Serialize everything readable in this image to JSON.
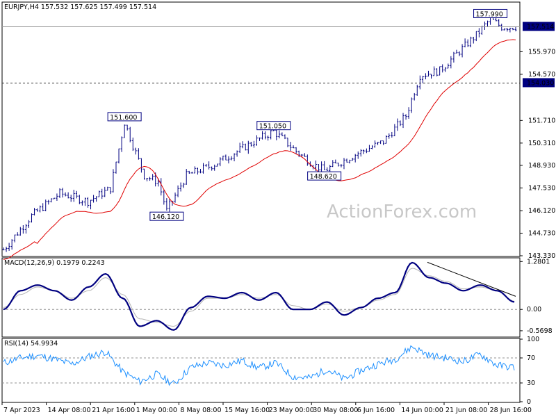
{
  "chart_data": [
    {
      "panel": "price",
      "type": "ohlc",
      "title": "EURJPY,H4  157.532 157.625 157.499 157.514",
      "ylim": [
        143.33,
        159.0
      ],
      "y_ticks": [
        "155.970",
        "154.570",
        "151.710",
        "150.310",
        "148.930",
        "147.530",
        "146.120",
        "144.730",
        "143.330"
      ],
      "current_price_label": "157.514",
      "level_label": "154.030",
      "level_lines": [
        157.514,
        154.03
      ],
      "annotations": [
        {
          "text": "151.600",
          "x": 43,
          "y": 151.6
        },
        {
          "text": "146.120",
          "x": 58,
          "y": 146.12
        },
        {
          "text": "151.050",
          "x": 96,
          "y": 151.05
        },
        {
          "text": "148.620",
          "x": 114,
          "y": 148.62
        },
        {
          "text": "157.990",
          "x": 173,
          "y": 157.99
        }
      ],
      "anchors": [
        {
          "x": 0,
          "y": 143.7
        },
        {
          "x": 10,
          "y": 145.8
        },
        {
          "x": 20,
          "y": 147.2
        },
        {
          "x": 30,
          "y": 146.7
        },
        {
          "x": 38,
          "y": 147.5
        },
        {
          "x": 43,
          "y": 151.6
        },
        {
          "x": 50,
          "y": 148.3
        },
        {
          "x": 55,
          "y": 147.9
        },
        {
          "x": 58,
          "y": 146.12
        },
        {
          "x": 65,
          "y": 148.3
        },
        {
          "x": 75,
          "y": 149.0
        },
        {
          "x": 85,
          "y": 150.0
        },
        {
          "x": 96,
          "y": 151.05
        },
        {
          "x": 104,
          "y": 149.8
        },
        {
          "x": 110,
          "y": 149.0
        },
        {
          "x": 114,
          "y": 148.62
        },
        {
          "x": 125,
          "y": 149.6
        },
        {
          "x": 135,
          "y": 150.4
        },
        {
          "x": 143,
          "y": 152.0
        },
        {
          "x": 148,
          "y": 154.5
        },
        {
          "x": 155,
          "y": 154.8
        },
        {
          "x": 162,
          "y": 156.0
        },
        {
          "x": 168,
          "y": 157.0
        },
        {
          "x": 173,
          "y": 157.99
        },
        {
          "x": 177,
          "y": 157.5
        },
        {
          "x": 182,
          "y": 157.514
        }
      ]
    },
    {
      "panel": "macd",
      "type": "line",
      "title": "MACD(12,26,9) 0.1979 0.2243",
      "ylim": [
        -0.72,
        1.36
      ],
      "y_ticks": [
        "1.2801",
        "0.00",
        "-0.5698"
      ],
      "series": [
        {
          "values": [
            0.0,
            0.5,
            0.65,
            0.5,
            0.25,
            0.6,
            0.95,
            0.3,
            -0.45,
            -0.3,
            -0.55,
            0.05,
            0.35,
            0.3,
            0.45,
            0.25,
            0.45,
            0.0,
            0.0,
            0.2,
            -0.15,
            0.05,
            0.3,
            0.45,
            1.25,
            0.85,
            0.7,
            0.5,
            0.65,
            0.5,
            0.2
          ],
          "color": "#000080"
        },
        {
          "values": [
            0.05,
            0.4,
            0.6,
            0.5,
            0.3,
            0.5,
            0.85,
            0.4,
            -0.25,
            -0.35,
            -0.45,
            -0.05,
            0.3,
            0.3,
            0.4,
            0.3,
            0.4,
            0.1,
            0.0,
            0.15,
            -0.05,
            0.05,
            0.25,
            0.4,
            1.1,
            0.9,
            0.75,
            0.55,
            0.6,
            0.5,
            0.22
          ],
          "color": "#b4b4b4"
        }
      ],
      "trendline": [
        [
          1.26,
          0.51
        ],
        [
          0.35,
          0.93
        ]
      ]
    },
    {
      "panel": "rsi",
      "type": "line",
      "title": "RSI(14) 54.9934",
      "ylim": [
        0,
        100
      ],
      "y_ticks": [
        "100",
        "70",
        "30",
        "0"
      ],
      "levels": [
        70,
        30
      ],
      "series": [
        {
          "values": [
            62,
            70,
            74,
            68,
            60,
            72,
            80,
            48,
            32,
            44,
            28,
            55,
            62,
            58,
            66,
            54,
            62,
            40,
            38,
            52,
            36,
            50,
            60,
            68,
            88,
            74,
            70,
            64,
            76,
            58,
            55
          ],
          "color": "#1e90ff"
        }
      ]
    }
  ],
  "x_axis": {
    "tick_labels": [
      "7 Apr 2023",
      "14 Apr 08:00",
      "21 Apr 16:00",
      "1 May 00:00",
      "8 May 08:00",
      "15 May 16:00",
      "23 May 00:00",
      "30 May 08:00",
      "6 Jun 16:00",
      "14 Jun 00:00",
      "21 Jun 08:00",
      "28 Jun 16:00"
    ]
  },
  "watermark": "ActionForex.com",
  "colors": {
    "bars": "#000080",
    "ma": "#e00000",
    "macd": "#000080",
    "signal": "#b4b4b4",
    "rsi": "#1e90ff",
    "axis_label_bg": "#000080"
  }
}
